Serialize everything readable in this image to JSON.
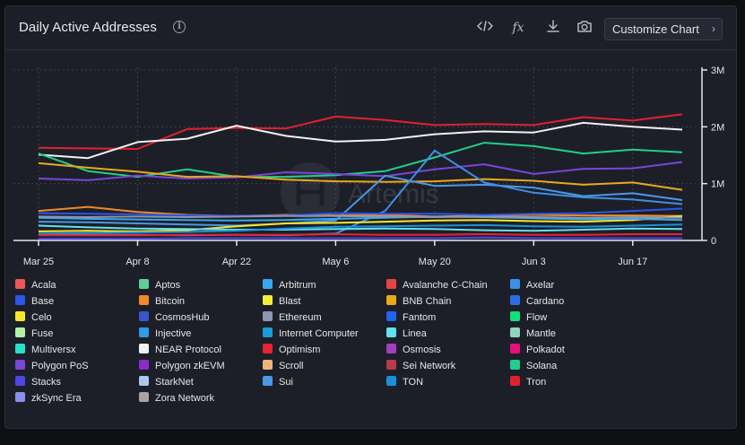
{
  "header": {
    "title": "Daily Active Addresses",
    "info_icon": "info-icon",
    "tools": [
      "code-icon",
      "function-icon",
      "download-icon",
      "camera-icon"
    ],
    "customize_label": "Customize Chart"
  },
  "watermark": "Artemis",
  "chart_data": {
    "type": "line",
    "title": "Daily Active Addresses",
    "x": [
      "Mar 25",
      "Apr 1",
      "Apr 8",
      "Apr 15",
      "Apr 22",
      "Apr 29",
      "May 6",
      "May 13",
      "May 20",
      "May 27",
      "Jun 3",
      "Jun 10",
      "Jun 17",
      "Jun 24"
    ],
    "x_tick_labels": [
      "Mar 25",
      "Apr 8",
      "Apr 22",
      "May 6",
      "May 20",
      "Jun 3",
      "Jun 17"
    ],
    "ylim": [
      0,
      3000000
    ],
    "y_tick_labels": [
      "0",
      "1M",
      "2M",
      "3M"
    ],
    "y_ticks": [
      0,
      1000000,
      2000000,
      3000000
    ],
    "series": [
      {
        "name": "Tron",
        "color": "#e0212e",
        "values": [
          1630000,
          1620000,
          1610000,
          1960000,
          1980000,
          1970000,
          2180000,
          2120000,
          2030000,
          2050000,
          2030000,
          2170000,
          2110000,
          2220000
        ]
      },
      {
        "name": "NEAR Protocol",
        "color": "#f2f2f2",
        "values": [
          1510000,
          1450000,
          1730000,
          1790000,
          2020000,
          1840000,
          1740000,
          1770000,
          1870000,
          1920000,
          1900000,
          2070000,
          2000000,
          1950000
        ]
      },
      {
        "name": "Solana",
        "color": "#1fd08a",
        "values": [
          1530000,
          1220000,
          1120000,
          1250000,
          1120000,
          1120000,
          1150000,
          1220000,
          1460000,
          1720000,
          1660000,
          1530000,
          1600000,
          1550000
        ]
      },
      {
        "name": "Polygon PoS",
        "color": "#7b45d8",
        "values": [
          1090000,
          1060000,
          1140000,
          1090000,
          1110000,
          1200000,
          1170000,
          1130000,
          1250000,
          1340000,
          1170000,
          1260000,
          1270000,
          1380000
        ]
      },
      {
        "name": "BNB Chain",
        "color": "#e9a91a",
        "values": [
          1360000,
          1280000,
          1210000,
          1120000,
          1130000,
          1070000,
          1040000,
          1030000,
          1040000,
          1080000,
          1050000,
          980000,
          1020000,
          890000
        ]
      },
      {
        "name": "Sui",
        "color": "#4a98e8",
        "values": [
          330000,
          320000,
          300000,
          280000,
          260000,
          300000,
          350000,
          1140000,
          960000,
          980000,
          930000,
          780000,
          830000,
          710000
        ]
      },
      {
        "name": "Axelar",
        "color": "#3f8fe6",
        "values": [
          110000,
          100000,
          100000,
          90000,
          100000,
          90000,
          120000,
          520000,
          1580000,
          1020000,
          840000,
          760000,
          720000,
          640000
        ]
      },
      {
        "name": "Bitcoin",
        "color": "#f08a28",
        "values": [
          520000,
          590000,
          500000,
          450000,
          430000,
          450000,
          440000,
          450000,
          420000,
          440000,
          450000,
          440000,
          440000,
          430000
        ]
      },
      {
        "name": "Base",
        "color": "#2b56e8",
        "values": [
          480000,
          470000,
          460000,
          440000,
          430000,
          440000,
          480000,
          470000,
          470000,
          450000,
          470000,
          480000,
          520000,
          560000
        ]
      },
      {
        "name": "Celo",
        "color": "#f5e72c",
        "values": [
          160000,
          170000,
          160000,
          180000,
          250000,
          300000,
          310000,
          330000,
          350000,
          360000,
          340000,
          330000,
          360000,
          430000
        ]
      },
      {
        "name": "Arbitrum",
        "color": "#3aa7ee",
        "values": [
          400000,
          380000,
          370000,
          360000,
          350000,
          360000,
          380000,
          400000,
          420000,
          410000,
          390000,
          370000,
          380000,
          360000
        ]
      },
      {
        "name": "Ethereum",
        "color": "#8e96b0",
        "values": [
          420000,
          410000,
          420000,
          410000,
          420000,
          430000,
          430000,
          420000,
          410000,
          420000,
          410000,
          400000,
          410000,
          400000
        ]
      },
      {
        "name": "Linea",
        "color": "#61e1ee",
        "values": [
          260000,
          230000,
          210000,
          200000,
          190000,
          190000,
          200000,
          210000,
          200000,
          180000,
          170000,
          190000,
          210000,
          200000
        ]
      },
      {
        "name": "TON",
        "color": "#1b90d8",
        "values": [
          120000,
          130000,
          140000,
          150000,
          170000,
          210000,
          240000,
          250000,
          260000,
          270000,
          250000,
          240000,
          260000,
          280000
        ]
      },
      {
        "name": "Optimism",
        "color": "#e82335",
        "values": [
          90000,
          90000,
          90000,
          100000,
          100000,
          100000,
          110000,
          100000,
          100000,
          110000,
          100000,
          100000,
          110000,
          110000
        ]
      },
      {
        "name": "Stacks",
        "color": "#5046e5",
        "values": [
          30000,
          30000,
          30000,
          40000,
          40000,
          40000,
          40000,
          40000,
          40000,
          50000,
          40000,
          40000,
          40000,
          40000
        ]
      }
    ]
  },
  "legend": [
    {
      "name": "Acala",
      "color": "#f0555a"
    },
    {
      "name": "Aptos",
      "color": "#5fcf9a"
    },
    {
      "name": "Arbitrum",
      "color": "#3aa7ee"
    },
    {
      "name": "Avalanche C-Chain",
      "color": "#e54545"
    },
    {
      "name": "Axelar",
      "color": "#3f8fe6"
    },
    {
      "name": "Base",
      "color": "#2b56e8"
    },
    {
      "name": "Bitcoin",
      "color": "#f08a28"
    },
    {
      "name": "Blast",
      "color": "#f3f03a"
    },
    {
      "name": "BNB Chain",
      "color": "#e9a91a"
    },
    {
      "name": "Cardano",
      "color": "#2a6fe2"
    },
    {
      "name": "Celo",
      "color": "#f5e72c"
    },
    {
      "name": "CosmosHub",
      "color": "#3b55c8"
    },
    {
      "name": "Ethereum",
      "color": "#8e96b0"
    },
    {
      "name": "Fantom",
      "color": "#1f66f0"
    },
    {
      "name": "Flow",
      "color": "#10e078"
    },
    {
      "name": "Fuse",
      "color": "#b3f2a6"
    },
    {
      "name": "Injective",
      "color": "#2e9ae8"
    },
    {
      "name": "Internet Computer",
      "color": "#1c9bd8"
    },
    {
      "name": "Linea",
      "color": "#61e1ee"
    },
    {
      "name": "Mantle",
      "color": "#8fd4bf"
    },
    {
      "name": "Multiversx",
      "color": "#26e2c8"
    },
    {
      "name": "NEAR Protocol",
      "color": "#f2f2f2"
    },
    {
      "name": "Optimism",
      "color": "#e82335"
    },
    {
      "name": "Osmosis",
      "color": "#a13fc0"
    },
    {
      "name": "Polkadot",
      "color": "#e4117b"
    },
    {
      "name": "Polygon PoS",
      "color": "#7b45d8"
    },
    {
      "name": "Polygon zkEVM",
      "color": "#8a2bc9"
    },
    {
      "name": "Scroll",
      "color": "#ecb67a"
    },
    {
      "name": "Sei Network",
      "color": "#b73a48"
    },
    {
      "name": "Solana",
      "color": "#1fd08a"
    },
    {
      "name": "Stacks",
      "color": "#5046e5"
    },
    {
      "name": "StarkNet",
      "color": "#a8c8f0"
    },
    {
      "name": "Sui",
      "color": "#4a98e8"
    },
    {
      "name": "TON",
      "color": "#1b90d8"
    },
    {
      "name": "Tron",
      "color": "#e0212e"
    },
    {
      "name": "zkSync Era",
      "color": "#8c8ff0"
    },
    {
      "name": "Zora Network",
      "color": "#a5a5a5"
    }
  ]
}
